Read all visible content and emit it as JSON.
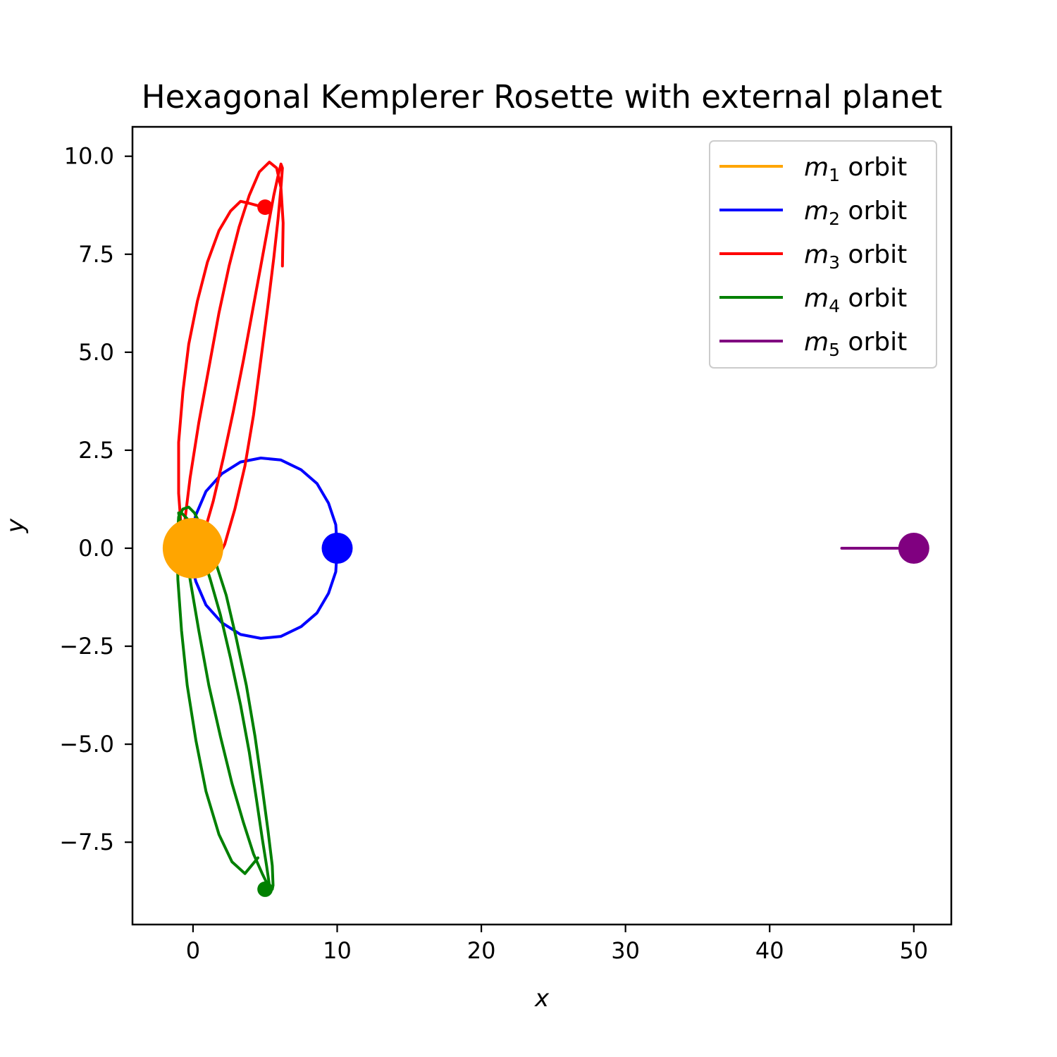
{
  "chart_data": {
    "type": "line",
    "title": "Hexagonal Kemplerer Rosette with external planet",
    "xlabel": "x",
    "ylabel": "y",
    "xlim": [
      -4.2,
      52.6
    ],
    "ylim": [
      -9.6,
      10.75
    ],
    "xticks": [
      0,
      10,
      20,
      30,
      40,
      50
    ],
    "xtick_labels": [
      "0",
      "10",
      "20",
      "30",
      "40",
      "50"
    ],
    "yticks": [
      10,
      7.5,
      5,
      2.5,
      0,
      -2.5,
      -5,
      -7.5
    ],
    "ytick_labels": [
      "10.0",
      "7.5",
      "5.0",
      "2.5",
      "0.0",
      "−2.5",
      "−5.0",
      "−7.5"
    ],
    "grid": false,
    "legend_position": "top-right",
    "series": [
      {
        "name": "m1 orbit",
        "legend_base": "m",
        "legend_sub": "1",
        "legend_suffix": " orbit",
        "color": "#FFA500",
        "x": [
          0
        ],
        "y": [
          0
        ],
        "final_position": [
          0,
          0
        ],
        "marker_size": "large"
      },
      {
        "name": "m2 orbit",
        "legend_base": "m",
        "legend_sub": "2",
        "legend_suffix": " orbit",
        "color": "#0000FF",
        "x": [
          10.0,
          9.9,
          9.4,
          8.6,
          7.5,
          6.1,
          4.7,
          3.3,
          2.0,
          0.9,
          0.2,
          -0.2,
          -0.2,
          0.2,
          0.9,
          2.0,
          3.3,
          4.7,
          6.1,
          7.5,
          8.6,
          9.4,
          9.9,
          10.0
        ],
        "y": [
          0.0,
          0.6,
          1.15,
          1.65,
          2.0,
          2.25,
          2.3,
          2.2,
          1.9,
          1.45,
          0.85,
          0.3,
          -0.3,
          -0.85,
          -1.45,
          -1.9,
          -2.2,
          -2.3,
          -2.25,
          -2.0,
          -1.65,
          -1.15,
          -0.6,
          0.0
        ],
        "final_position": [
          10.0,
          0.0
        ],
        "marker_size": "medium"
      },
      {
        "name": "m3 orbit",
        "legend_base": "m",
        "legend_sub": "3",
        "legend_suffix": " orbit",
        "color": "#FF0000",
        "x": [
          6.2,
          6.25,
          6.1,
          5.8,
          5.3,
          4.6,
          3.9,
          3.2,
          2.5,
          1.8,
          1.1,
          0.4,
          -0.2,
          -0.6,
          -0.9,
          -1.0,
          -0.9,
          -0.5,
          0.1,
          0.7,
          1.4,
          2.1,
          2.8,
          3.5,
          4.1,
          4.7,
          5.2,
          5.6,
          5.9,
          6.1,
          6.2,
          6.1,
          5.9,
          5.6,
          5.2,
          4.7,
          4.2,
          3.6,
          2.9,
          2.2,
          1.5,
          0.8,
          0.2,
          -0.4,
          -0.8,
          -1.0,
          -1.0,
          -0.7,
          -0.3,
          0.3,
          1.0,
          1.8,
          2.6,
          3.3,
          3.9,
          4.4,
          4.9
        ],
        "y": [
          7.2,
          8.3,
          9.2,
          9.7,
          9.85,
          9.6,
          9.0,
          8.2,
          7.2,
          6.0,
          4.6,
          3.2,
          1.8,
          0.6,
          -0.2,
          -0.5,
          -0.65,
          -0.6,
          -0.3,
          0.3,
          1.2,
          2.3,
          3.5,
          4.8,
          6.0,
          7.2,
          8.2,
          9.0,
          9.5,
          9.8,
          9.7,
          9.2,
          8.4,
          7.4,
          6.2,
          4.8,
          3.4,
          2.1,
          1.0,
          0.1,
          -0.4,
          -0.6,
          -0.5,
          -0.2,
          0.4,
          1.4,
          2.7,
          4.0,
          5.2,
          6.3,
          7.3,
          8.1,
          8.6,
          8.85,
          8.8,
          8.75,
          8.7
        ],
        "final_position": [
          5.0,
          8.7
        ],
        "marker_size": "small"
      },
      {
        "name": "m4 orbit",
        "legend_base": "m",
        "legend_sub": "4",
        "legend_suffix": " orbit",
        "color": "#008000",
        "x": [
          4.5,
          3.6,
          2.7,
          1.8,
          0.9,
          0.2,
          -0.4,
          -0.8,
          -1.05,
          -1.1,
          -1.0,
          -0.7,
          -0.3,
          0.1,
          0.5,
          1.0,
          1.6,
          2.3,
          3.0,
          3.7,
          4.3,
          4.8,
          5.2,
          5.5,
          5.55,
          5.5,
          5.2,
          4.8,
          4.2,
          3.5,
          2.7,
          1.9,
          1.1,
          0.4,
          -0.2,
          -0.6,
          -0.9,
          -1.0,
          -0.8,
          -0.4,
          0.1,
          0.6,
          1.2,
          1.9,
          2.6,
          3.3,
          3.9,
          4.4,
          4.8,
          5.1,
          5.3,
          5.2,
          5.0
        ],
        "y": [
          -7.9,
          -8.3,
          -8.0,
          -7.3,
          -6.2,
          -4.9,
          -3.5,
          -2.1,
          -0.8,
          0.2,
          0.8,
          1.0,
          1.05,
          0.9,
          0.6,
          0.2,
          -0.4,
          -1.2,
          -2.3,
          -3.5,
          -4.8,
          -6.1,
          -7.2,
          -8.1,
          -8.6,
          -8.7,
          -8.6,
          -8.3,
          -7.8,
          -7.0,
          -6.0,
          -4.8,
          -3.5,
          -2.1,
          -0.8,
          0.2,
          0.7,
          0.9,
          0.9,
          0.75,
          0.4,
          -0.1,
          -0.8,
          -1.7,
          -2.8,
          -4.0,
          -5.2,
          -6.4,
          -7.4,
          -8.1,
          -8.6,
          -8.7,
          -8.7
        ],
        "final_position": [
          5.0,
          -8.7
        ],
        "marker_size": "small"
      },
      {
        "name": "m5 orbit",
        "legend_base": "m",
        "legend_sub": "5",
        "legend_suffix": " orbit",
        "color": "#800080",
        "x": [
          45.0,
          46.5,
          48.0,
          49.2,
          50.0
        ],
        "y": [
          0.0,
          0.0,
          0.0,
          0.0,
          0.0
        ],
        "final_position": [
          50.0,
          0.0
        ],
        "marker_size": "medium"
      }
    ]
  }
}
